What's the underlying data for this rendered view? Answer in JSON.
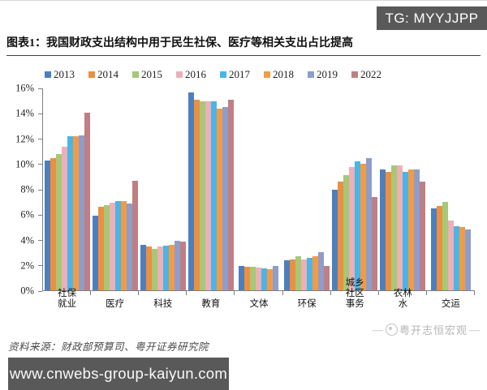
{
  "badge": {
    "text": "TG: MYYJJPP"
  },
  "title": "图表1：我国财政支出结构中用于民生社保、医疗等相关支出占比提高",
  "source": "资料来源：财政部预算司、粤开证券研究院",
  "watermark": {
    "dash_left": "—",
    "dash_right": "—",
    "text": "粤开志恒宏观"
  },
  "banner": {
    "url_text": "www.cnwebs-group-kaiyun.com"
  },
  "colors": {
    "badge_bg": "#595959",
    "banner_bg": "#595959",
    "axis": "#7f7f7f"
  },
  "chart_data": {
    "type": "bar",
    "title": "图表1：我国财政支出结构中用于民生社保、医疗等相关支出占比提高",
    "categories": [
      "社保就业",
      "医疗",
      "科技",
      "教育",
      "文体",
      "环保",
      "城乡社区事务",
      "农林水",
      "交运"
    ],
    "series": [
      {
        "name": "2013",
        "color": "#4e7fba",
        "values": [
          10.3,
          5.9,
          3.6,
          15.7,
          1.9,
          2.4,
          8.0,
          9.6,
          6.5
        ]
      },
      {
        "name": "2014",
        "color": "#ec8f41",
        "values": [
          10.5,
          6.6,
          3.45,
          15.1,
          1.85,
          2.45,
          8.6,
          9.4,
          6.7
        ]
      },
      {
        "name": "2015",
        "color": "#a6c878",
        "values": [
          10.8,
          6.75,
          3.3,
          15.0,
          1.85,
          2.7,
          9.1,
          9.9,
          7.0
        ]
      },
      {
        "name": "2016",
        "color": "#edb0b6",
        "values": [
          11.4,
          6.95,
          3.45,
          15.0,
          1.8,
          2.45,
          9.8,
          9.9,
          5.5
        ]
      },
      {
        "name": "2017",
        "color": "#4ab5e6",
        "values": [
          12.2,
          7.1,
          3.55,
          15.0,
          1.75,
          2.6,
          10.2,
          9.4,
          5.1
        ]
      },
      {
        "name": "2018",
        "color": "#f29b47",
        "values": [
          12.2,
          7.1,
          3.6,
          14.4,
          1.65,
          2.7,
          10.0,
          9.6,
          5.0
        ]
      },
      {
        "name": "2019",
        "color": "#8e9dc9",
        "values": [
          12.3,
          6.9,
          3.95,
          14.5,
          1.9,
          3.05,
          10.5,
          9.6,
          4.8
        ]
      },
      {
        "name": "2022",
        "color": "#c07f84",
        "values": [
          14.1,
          8.7,
          3.85,
          15.1,
          null,
          1.95,
          7.4,
          8.6,
          null
        ]
      }
    ],
    "ylabel": "",
    "xlabel": "",
    "ylim": [
      0,
      16
    ],
    "ytick_step": 2,
    "ytick_format": "percent",
    "yticks": [
      "0%",
      "2%",
      "4%",
      "6%",
      "8%",
      "10%",
      "12%",
      "14%",
      "16%"
    ],
    "grid": false,
    "legend_position": "top"
  }
}
